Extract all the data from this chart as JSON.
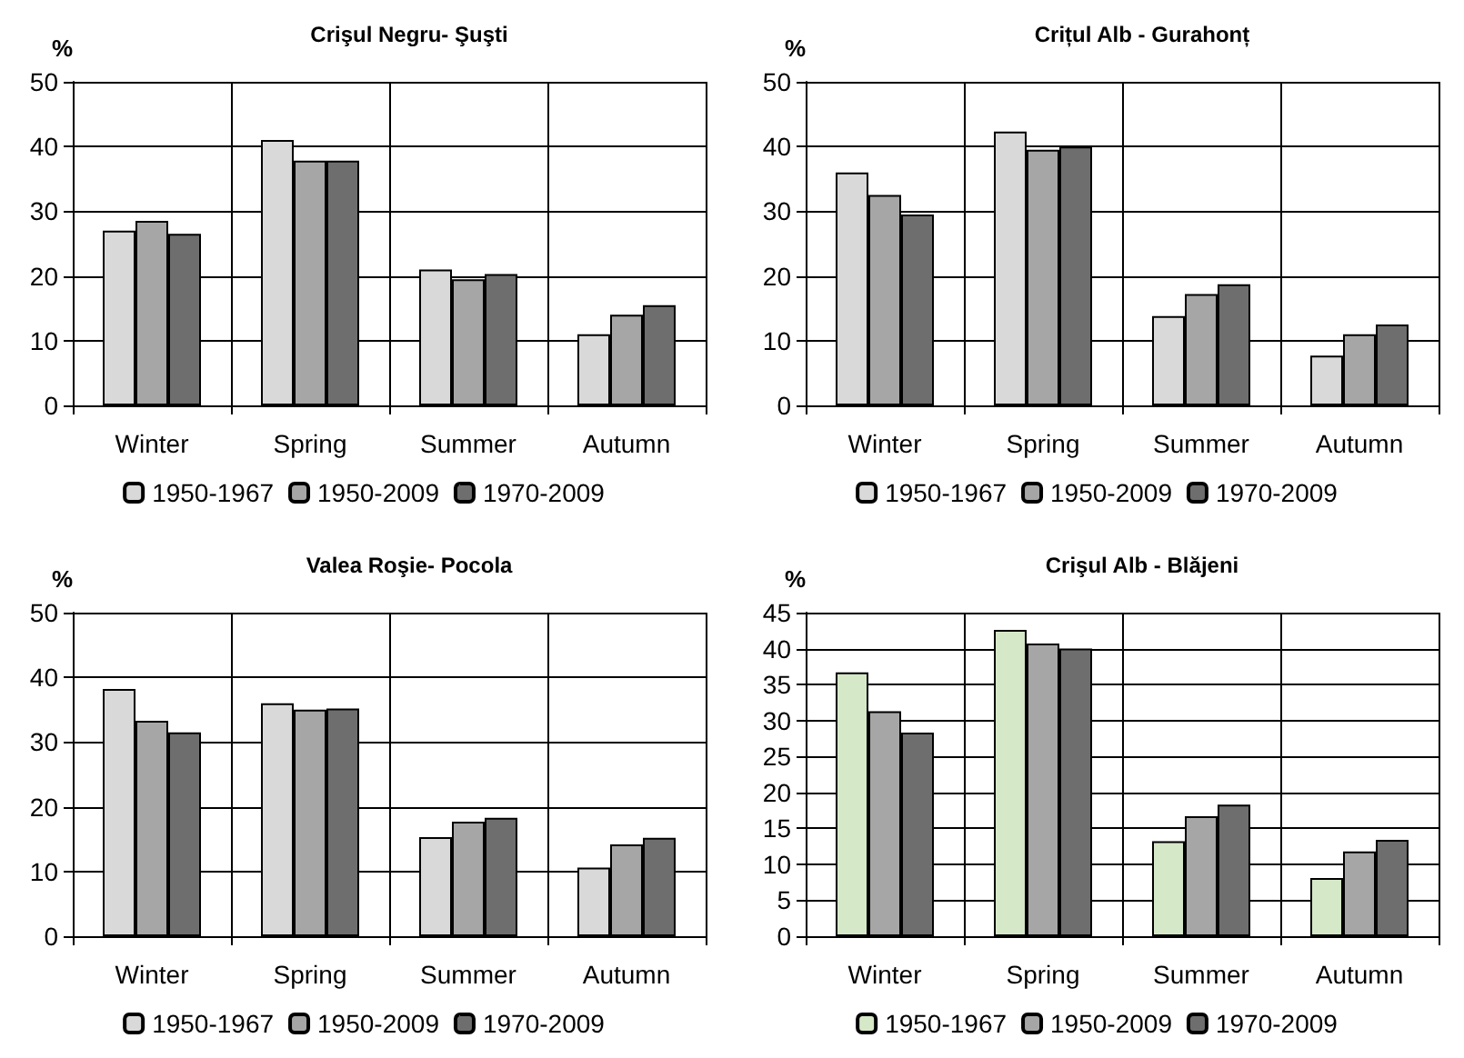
{
  "chart_data": [
    {
      "type": "bar",
      "title": "Crişul Negru- Şuşti",
      "ylabel": "%",
      "categories": [
        "Winter",
        "Spring",
        "Summer",
        "Autumn"
      ],
      "ylim": [
        0,
        50
      ],
      "yticks": [
        0,
        10,
        20,
        30,
        40,
        50
      ],
      "grid": true,
      "legend": "bottom",
      "series": [
        {
          "name": "1950-1967",
          "color": "#d9d9d9",
          "values": [
            27,
            41,
            21,
            11
          ]
        },
        {
          "name": "1950-2009",
          "color": "#a6a6a6",
          "values": [
            28.5,
            37.8,
            19.5,
            14
          ]
        },
        {
          "name": "1970-2009",
          "color": "#6e6e6e",
          "values": [
            26.5,
            37.8,
            20.3,
            15.5
          ]
        }
      ]
    },
    {
      "type": "bar",
      "title": "Crițul Alb - Gurahonț",
      "ylabel": "%",
      "categories": [
        "Winter",
        "Spring",
        "Summer",
        "Autumn"
      ],
      "ylim": [
        0,
        50
      ],
      "yticks": [
        0,
        10,
        20,
        30,
        40,
        50
      ],
      "grid": true,
      "legend": "bottom",
      "series": [
        {
          "name": "1950-1967",
          "color": "#d9d9d9",
          "values": [
            36,
            42.3,
            13.8,
            7.7
          ]
        },
        {
          "name": "1950-2009",
          "color": "#a6a6a6",
          "values": [
            32.5,
            39.5,
            17.2,
            11
          ]
        },
        {
          "name": "1970-2009",
          "color": "#6e6e6e",
          "values": [
            29.5,
            40,
            18.7,
            12.5
          ]
        }
      ]
    },
    {
      "type": "bar",
      "title": "Valea Roşie- Pocola",
      "ylabel": "%",
      "categories": [
        "Winter",
        "Spring",
        "Summer",
        "Autumn"
      ],
      "ylim": [
        0,
        50
      ],
      "yticks": [
        0,
        10,
        20,
        30,
        40,
        50
      ],
      "grid": true,
      "legend": "bottom",
      "series": [
        {
          "name": "1950-1967",
          "color": "#d9d9d9",
          "values": [
            38.2,
            36,
            15.3,
            10.6
          ]
        },
        {
          "name": "1950-2009",
          "color": "#a6a6a6",
          "values": [
            33.3,
            35,
            17.7,
            14.2
          ]
        },
        {
          "name": "1970-2009",
          "color": "#6e6e6e",
          "values": [
            31.5,
            35.2,
            18.3,
            15.2
          ]
        }
      ]
    },
    {
      "type": "bar",
      "title": "Crişul Alb - Blăjeni",
      "ylabel": "%",
      "categories": [
        "Winter",
        "Spring",
        "Summer",
        "Autumn"
      ],
      "ylim": [
        0,
        45
      ],
      "yticks": [
        0,
        5,
        10,
        15,
        20,
        25,
        30,
        35,
        40,
        45
      ],
      "grid": true,
      "legend": "bottom",
      "series": [
        {
          "name": "1950-1967",
          "color": "#d5e8c8",
          "values": [
            36.7,
            42.6,
            13.2,
            8.1
          ]
        },
        {
          "name": "1950-2009",
          "color": "#a6a6a6",
          "values": [
            31.3,
            40.7,
            16.7,
            11.8
          ]
        },
        {
          "name": "1970-2009",
          "color": "#6e6e6e",
          "values": [
            28.3,
            40,
            18.3,
            13.4
          ]
        }
      ]
    }
  ]
}
